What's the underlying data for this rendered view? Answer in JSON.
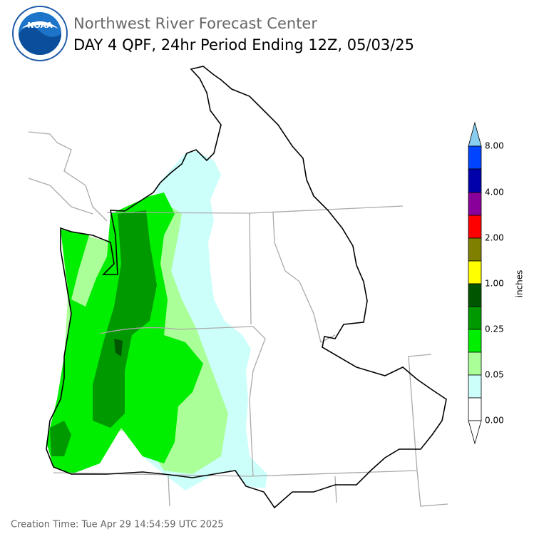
{
  "header": {
    "title": "Northwest River Forecast Center",
    "subtitle": "DAY 4 QPF, 24hr Period Ending 12Z, 05/03/25",
    "logo_text": "NOAA"
  },
  "colorbar": {
    "label": "inches",
    "ticks": [
      "0.00",
      "0.05",
      "0.25",
      "1.00",
      "2.00",
      "4.00",
      "8.00"
    ]
  },
  "footer": {
    "creation_time": "Creation Time: Tue Apr 29 14:54:59 UTC 2025"
  }
}
